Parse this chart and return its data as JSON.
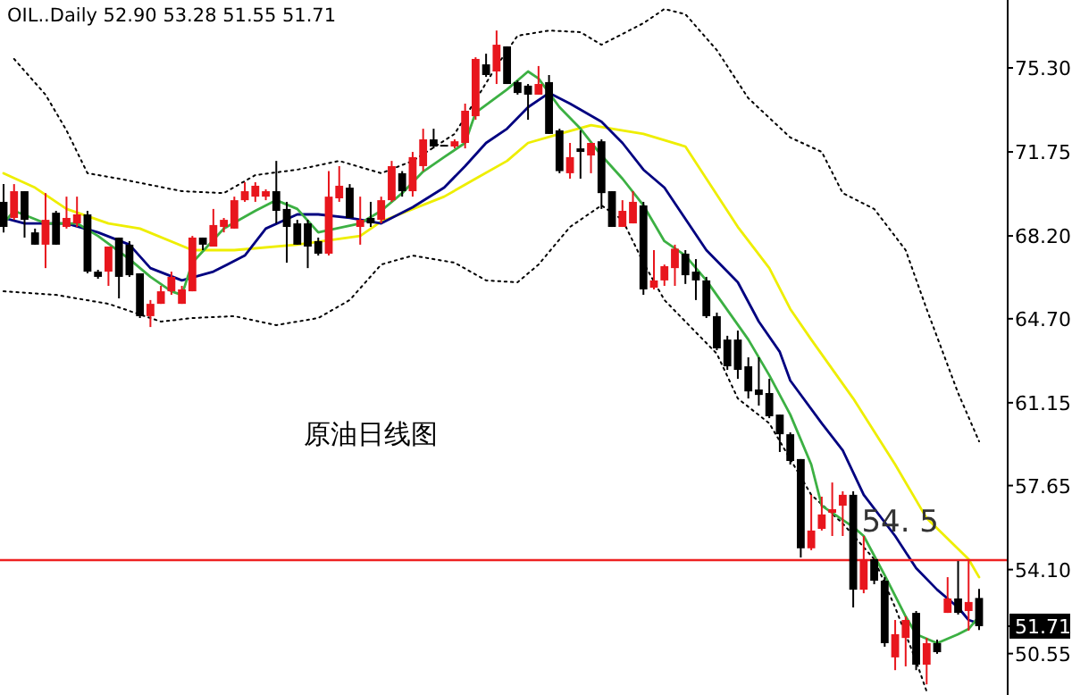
{
  "chart_data": {
    "type": "candlestick",
    "title": "OIL..Daily 52.90 53.28 51.55 51.71",
    "annotations": [
      "原油日线图"
    ],
    "categories": [
      null,
      null,
      null,
      null,
      null,
      null,
      null,
      null,
      null,
      null,
      null,
      null,
      null,
      null,
      null,
      null,
      null,
      null,
      null,
      null,
      null,
      null,
      null,
      null,
      null,
      null,
      null,
      null,
      null,
      null,
      null,
      null,
      null,
      null,
      null,
      null,
      null,
      null,
      null,
      null,
      null,
      null,
      null,
      null,
      null,
      null,
      null,
      null,
      null,
      null,
      null,
      null,
      null,
      null,
      null,
      null,
      null,
      null,
      null,
      null,
      null,
      null,
      null,
      null,
      null,
      null,
      null,
      null,
      null,
      null,
      null,
      null,
      null,
      null,
      null,
      null,
      null,
      null,
      null,
      null,
      null,
      null,
      null,
      null,
      null,
      null,
      null,
      null,
      null,
      null,
      null,
      null,
      null,
      null
    ],
    "ohlc": [
      [
        69.64,
        70.39,
        68.35,
        68.58
      ],
      [
        68.96,
        70.39,
        68.88,
        70.09
      ],
      [
        70.09,
        70.09,
        68.13,
        68.88
      ],
      [
        68.35,
        68.51,
        67.83,
        67.83
      ],
      [
        67.83,
        70.01,
        66.84,
        68.88
      ],
      [
        69.18,
        69.26,
        67.83,
        67.83
      ],
      [
        68.58,
        69.86,
        68.51,
        68.96
      ],
      [
        68.73,
        69.86,
        68.58,
        69.11
      ],
      [
        69.11,
        69.26,
        66.62,
        66.69
      ],
      [
        66.69,
        66.77,
        66.39,
        66.47
      ],
      [
        66.69,
        67.75,
        66.09,
        67.75
      ],
      [
        68.13,
        68.13,
        65.56,
        66.47
      ],
      [
        67.83,
        67.98,
        66.47,
        66.54
      ],
      [
        66.62,
        66.62,
        64.73,
        64.81
      ],
      [
        64.81,
        65.49,
        64.35,
        65.33
      ],
      [
        65.33,
        66.09,
        65.33,
        65.86
      ],
      [
        65.86,
        66.69,
        65.71,
        66.47
      ],
      [
        65.33,
        66.09,
        65.33,
        65.94
      ],
      [
        65.86,
        68.2,
        65.86,
        68.13
      ],
      [
        68.13,
        68.13,
        67.6,
        67.83
      ],
      [
        67.75,
        69.34,
        67.75,
        68.66
      ],
      [
        68.58,
        68.96,
        68.35,
        68.88
      ],
      [
        68.51,
        69.86,
        68.51,
        69.71
      ],
      [
        69.71,
        70.47,
        69.64,
        70.09
      ],
      [
        69.86,
        70.47,
        69.64,
        70.32
      ],
      [
        69.86,
        70.17,
        69.71,
        70.09
      ],
      [
        70.09,
        71.37,
        68.73,
        69.26
      ],
      [
        69.34,
        69.64,
        67.07,
        68.58
      ],
      [
        68.73,
        68.88,
        67.83,
        67.83
      ],
      [
        68.73,
        68.88,
        66.84,
        67.75
      ],
      [
        67.98,
        68.13,
        67.37,
        67.45
      ],
      [
        67.45,
        70.94,
        67.37,
        69.86
      ],
      [
        69.79,
        71.15,
        69.64,
        70.32
      ],
      [
        70.24,
        70.39,
        68.96,
        68.96
      ],
      [
        68.58,
        69.86,
        67.83,
        68.88
      ],
      [
        68.96,
        69.64,
        68.58,
        68.73
      ],
      [
        68.88,
        69.86,
        68.73,
        69.71
      ],
      [
        69.71,
        71.37,
        69.64,
        71.15
      ],
      [
        70.85,
        70.94,
        69.86,
        70.09
      ],
      [
        70.09,
        71.75,
        69.86,
        71.53
      ],
      [
        71.15,
        72.73,
        70.94,
        72.28
      ],
      [
        72.28,
        72.73,
        71.9,
        71.98
      ],
      [
        72.05,
        72.05,
        71.98,
        71.98
      ],
      [
        71.98,
        72.28,
        71.9,
        72.2
      ],
      [
        72.13,
        73.79,
        71.9,
        73.49
      ],
      [
        73.26,
        75.75,
        73.11,
        75.68
      ],
      [
        75.45,
        75.9,
        74.92,
        75.0
      ],
      [
        75.15,
        76.88,
        74.62,
        76.28
      ],
      [
        76.21,
        76.21,
        74.62,
        74.62
      ],
      [
        74.7,
        74.77,
        74.17,
        74.24
      ],
      [
        74.55,
        74.62,
        73.11,
        74.17
      ],
      [
        74.17,
        75.38,
        74.17,
        74.62
      ],
      [
        74.7,
        75.0,
        72.51,
        72.51
      ],
      [
        72.66,
        72.73,
        70.85,
        70.94
      ],
      [
        70.85,
        72.13,
        70.62,
        71.53
      ],
      [
        71.9,
        72.66,
        70.62,
        71.75
      ],
      [
        71.6,
        72.13,
        70.85,
        72.13
      ],
      [
        72.2,
        72.28,
        69.34,
        70.01
      ],
      [
        70.09,
        70.09,
        68.58,
        68.58
      ],
      [
        68.58,
        69.71,
        68.58,
        69.26
      ],
      [
        68.73,
        70.09,
        68.73,
        69.64
      ],
      [
        69.49,
        69.64,
        65.71,
        65.94
      ],
      [
        66.01,
        67.6,
        65.94,
        66.32
      ],
      [
        66.32,
        66.99,
        66.09,
        66.92
      ],
      [
        66.84,
        67.83,
        66.09,
        67.66
      ],
      [
        67.45,
        67.6,
        66.17,
        66.54
      ],
      [
        66.69,
        67.22,
        65.49,
        66.32
      ],
      [
        66.32,
        66.47,
        64.73,
        64.81
      ],
      [
        64.81,
        64.96,
        63.37,
        63.45
      ],
      [
        63.82,
        63.98,
        62.54,
        62.69
      ],
      [
        63.82,
        64.2,
        62.16,
        62.54
      ],
      [
        62.69,
        63.07,
        61.33,
        61.63
      ],
      [
        61.71,
        63.07,
        61.03,
        61.48
      ],
      [
        61.56,
        62.16,
        60.5,
        60.58
      ],
      [
        60.65,
        60.65,
        59.07,
        59.82
      ],
      [
        59.82,
        59.9,
        58.54,
        58.69
      ],
      [
        58.77,
        58.77,
        54.61,
        55.0
      ],
      [
        55.0,
        57.26,
        54.92,
        55.75
      ],
      [
        55.82,
        57.18,
        55.75,
        56.43
      ],
      [
        56.5,
        57.78,
        55.52,
        56.65
      ],
      [
        56.8,
        57.41,
        55.52,
        57.26
      ],
      [
        57.26,
        57.41,
        52.5,
        53.25
      ],
      [
        53.25,
        55.52,
        53.1,
        54.54
      ],
      [
        54.54,
        54.54,
        53.48,
        53.63
      ],
      [
        53.63,
        53.78,
        50.84,
        50.99
      ],
      [
        50.39,
        51.97,
        49.85,
        51.37
      ],
      [
        51.21,
        52.12,
        50.01,
        51.97
      ],
      [
        52.27,
        52.35,
        49.85,
        50.08
      ],
      [
        50.08,
        51.21,
        49.25,
        50.99
      ],
      [
        50.99,
        51.14,
        50.54,
        50.61
      ],
      [
        52.27,
        53.78,
        52.27,
        52.88
      ],
      [
        52.88,
        54.46,
        52.2,
        52.27
      ],
      [
        52.35,
        54.46,
        51.52,
        52.73
      ],
      [
        52.9,
        53.28,
        51.55,
        51.71
      ]
    ],
    "colors": [
      "#000000",
      "#e8161d",
      "#000000",
      "#000000",
      "#e8161d",
      "#000000",
      "#e8161d",
      "#e8161d",
      "#000000",
      "#000000",
      "#e8161d",
      "#000000",
      "#000000",
      "#000000",
      "#e8161d",
      "#e8161d",
      "#e8161d",
      "#e8161d",
      "#e8161d",
      "#000000",
      "#e8161d",
      "#e8161d",
      "#e8161d",
      "#e8161d",
      "#e8161d",
      "#e8161d",
      "#000000",
      "#000000",
      "#000000",
      "#000000",
      "#000000",
      "#e8161d",
      "#e8161d",
      "#000000",
      "#e8161d",
      "#000000",
      "#e8161d",
      "#e8161d",
      "#000000",
      "#e8161d",
      "#e8161d",
      "#000000",
      "#000000",
      "#e8161d",
      "#e8161d",
      "#e8161d",
      "#000000",
      "#e8161d",
      "#000000",
      "#000000",
      "#000000",
      "#e8161d",
      "#000000",
      "#000000",
      "#e8161d",
      "#000000",
      "#e8161d",
      "#000000",
      "#000000",
      "#e8161d",
      "#e8161d",
      "#000000",
      "#e8161d",
      "#e8161d",
      "#e8161d",
      "#000000",
      "#000000",
      "#000000",
      "#000000",
      "#000000",
      "#000000",
      "#000000",
      "#000000",
      "#000000",
      "#000000",
      "#000000",
      "#000000",
      "#e8161d",
      "#e8161d",
      "#e8161d",
      "#e8161d",
      "#000000",
      "#e8161d",
      "#000000",
      "#000000",
      "#e8161d",
      "#e8161d",
      "#000000",
      "#e8161d",
      "#000000",
      "#e8161d",
      "#000000",
      "#e8161d",
      "#000000"
    ],
    "series": [
      {
        "type": "line",
        "color": "#000000",
        "line_style": "dotted",
        "values": [
          null,
          75.68,
          null,
          null,
          74.17,
          null,
          72.66,
          null,
          70.85,
          null,
          null,
          70.62,
          null,
          null,
          null,
          null,
          null,
          70.09,
          null,
          null,
          null,
          70.01,
          null,
          null,
          70.77,
          null,
          null,
          null,
          71.0,
          null,
          null,
          null,
          71.37,
          null,
          null,
          null,
          70.85,
          null,
          null,
          71.37,
          null,
          null,
          null,
          72.51,
          null,
          null,
          null,
          75.38,
          null,
          76.66,
          null,
          null,
          76.88,
          null,
          null,
          76.81,
          null,
          76.28,
          null,
          null,
          null,
          77.19,
          null,
          77.79,
          null,
          77.57,
          null,
          null,
          76.05,
          null,
          null,
          74.02,
          null,
          null,
          null,
          72.36,
          null,
          null,
          71.75,
          null,
          70.01,
          null,
          null,
          69.34,
          null,
          null,
          67.6,
          null,
          65.11,
          null,
          null,
          61.56,
          null,
          59.52
        ]
      },
      {
        "type": "line",
        "color": "#000000",
        "line_style": "dotted",
        "values": [
          65.86,
          null,
          null,
          null,
          null,
          65.71,
          null,
          null,
          null,
          null,
          65.33,
          null,
          null,
          null,
          null,
          64.58,
          null,
          null,
          64.73,
          null,
          null,
          null,
          64.81,
          null,
          null,
          null,
          64.43,
          null,
          null,
          null,
          64.73,
          null,
          null,
          65.49,
          null,
          null,
          66.99,
          null,
          null,
          67.37,
          null,
          null,
          null,
          67.07,
          null,
          null,
          66.32,
          null,
          null,
          66.24,
          null,
          66.99,
          null,
          null,
          68.58,
          null,
          null,
          69.49,
          null,
          68.88,
          null,
          67.07,
          null,
          65.49,
          null,
          null,
          null,
          null,
          63.22,
          null,
          61.33,
          null,
          null,
          60.28,
          null,
          58.77,
          null,
          57.26,
          null,
          null,
          56.05,
          null,
          null,
          54.54,
          null,
          52.5,
          null,
          50.23,
          48.95,
          null,
          null,
          null,
          null,
          null
        ]
      },
      {
        "type": "line",
        "color": "#eeee00",
        "line_style": "solid",
        "values": [
          70.85,
          null,
          null,
          70.24,
          null,
          null,
          69.34,
          null,
          null,
          null,
          68.73,
          null,
          null,
          68.51,
          null,
          null,
          null,
          null,
          67.6,
          null,
          null,
          null,
          67.6,
          null,
          null,
          null,
          null,
          null,
          67.83,
          null,
          null,
          null,
          null,
          null,
          68.2,
          null,
          68.81,
          null,
          null,
          null,
          null,
          null,
          69.86,
          null,
          null,
          70.62,
          null,
          null,
          71.37,
          null,
          72.13,
          null,
          null,
          72.51,
          null,
          null,
          72.88,
          null,
          72.73,
          null,
          null,
          72.51,
          null,
          null,
          null,
          71.98,
          null,
          70.62,
          null,
          null,
          68.58,
          null,
          null,
          66.84,
          null,
          65.11,
          null,
          63.82,
          null,
          null,
          null,
          61.33,
          null,
          null,
          null,
          58.54,
          null,
          null,
          56.27,
          null,
          null,
          null,
          54.54,
          53.78
        ]
      },
      {
        "type": "line",
        "color": "#000080",
        "line_style": "solid",
        "values": [
          68.96,
          null,
          68.73,
          null,
          null,
          null,
          68.73,
          null,
          null,
          68.35,
          null,
          null,
          67.83,
          null,
          66.84,
          null,
          null,
          66.32,
          null,
          null,
          66.69,
          null,
          null,
          67.37,
          null,
          68.51,
          null,
          null,
          69.11,
          null,
          69.11,
          null,
          null,
          68.96,
          null,
          null,
          68.73,
          null,
          null,
          69.41,
          null,
          null,
          70.24,
          null,
          71.15,
          null,
          72.13,
          null,
          72.73,
          null,
          73.64,
          null,
          74.24,
          null,
          73.79,
          null,
          null,
          73.03,
          null,
          72.13,
          null,
          71.0,
          null,
          70.24,
          null,
          null,
          null,
          67.6,
          null,
          null,
          66.24,
          null,
          64.58,
          null,
          63.3,
          62.09,
          null,
          null,
          60.28,
          null,
          59.14,
          null,
          57.26,
          null,
          null,
          55.52,
          null,
          54.16,
          null,
          53.25,
          null,
          52.5,
          51.97,
          51.82
        ]
      },
      {
        "type": "line",
        "color": "#3cb043",
        "line_style": "solid",
        "values": [
          68.73,
          69.26,
          null,
          null,
          68.73,
          null,
          null,
          68.73,
          null,
          68.2,
          null,
          null,
          67.22,
          null,
          66.47,
          null,
          65.86,
          65.71,
          67.07,
          null,
          null,
          68.51,
          null,
          null,
          69.26,
          null,
          69.71,
          null,
          69.34,
          null,
          68.35,
          null,
          null,
          null,
          68.73,
          null,
          69.26,
          null,
          70.01,
          null,
          70.92,
          null,
          71.53,
          null,
          72.13,
          73.41,
          null,
          null,
          74.39,
          null,
          75.15,
          74.85,
          null,
          73.64,
          null,
          72.73,
          null,
          71.6,
          null,
          70.62,
          null,
          69.49,
          null,
          67.98,
          null,
          67.37,
          null,
          66.32,
          null,
          null,
          null,
          63.82,
          null,
          62.31,
          null,
          60.65,
          null,
          58.54,
          56.8,
          null,
          null,
          55.9,
          55.52,
          null,
          53.86,
          null,
          52.12,
          51.37,
          null,
          50.99,
          null,
          51.37,
          51.59,
          52.12
        ]
      }
    ],
    "ylim": [
      48.8,
      78.17
    ],
    "yticks": [
      {
        "value": 75.3,
        "label": "75.30"
      },
      71.75,
      {
        "value": 68.2,
        "label": "68.20"
      },
      {
        "value": 64.7,
        "label": "64.70"
      },
      61.15,
      57.65,
      {
        "value": 54.1,
        "label": "54.10"
      },
      51.71,
      50.55
    ],
    "ref_lines": [
      {
        "axis": "y",
        "value": 54.5,
        "label": "54. 5",
        "color": "#ee2222",
        "line_style": "solid"
      }
    ],
    "tick_labels": "y"
  }
}
